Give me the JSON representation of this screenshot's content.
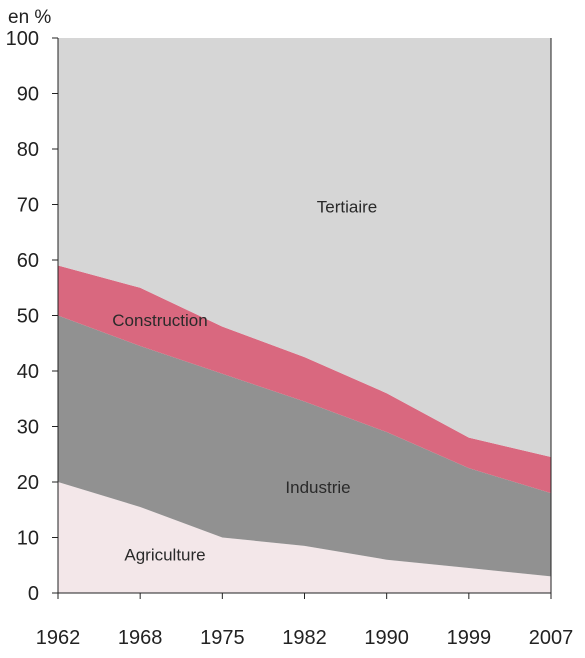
{
  "chart_data": {
    "type": "area",
    "stacked": true,
    "title": "",
    "xlabel": "",
    "ylabel": "en %",
    "ylim": [
      0,
      100
    ],
    "yticks": [
      0,
      10,
      20,
      30,
      40,
      50,
      60,
      70,
      80,
      90,
      100
    ],
    "grid": false,
    "legend": "none",
    "x": [
      "1962",
      "1968",
      "1975",
      "1982",
      "1990",
      "1999",
      "2007"
    ],
    "series": [
      {
        "name": "Agriculture",
        "color": "#f3e7e9",
        "values": [
          20,
          15.5,
          10,
          8.5,
          6,
          4.5,
          3
        ]
      },
      {
        "name": "Industrie",
        "color": "#919191",
        "values": [
          30,
          29,
          29.5,
          26,
          23,
          18,
          15
        ]
      },
      {
        "name": "Construction",
        "color": "#d9687f",
        "values": [
          9,
          10.5,
          8.5,
          8,
          7,
          5.5,
          6.5
        ]
      },
      {
        "name": "Tertiaire",
        "color": "#d6d6d6",
        "values": [
          41,
          45,
          52,
          57.5,
          64,
          72,
          75.5
        ]
      }
    ]
  }
}
